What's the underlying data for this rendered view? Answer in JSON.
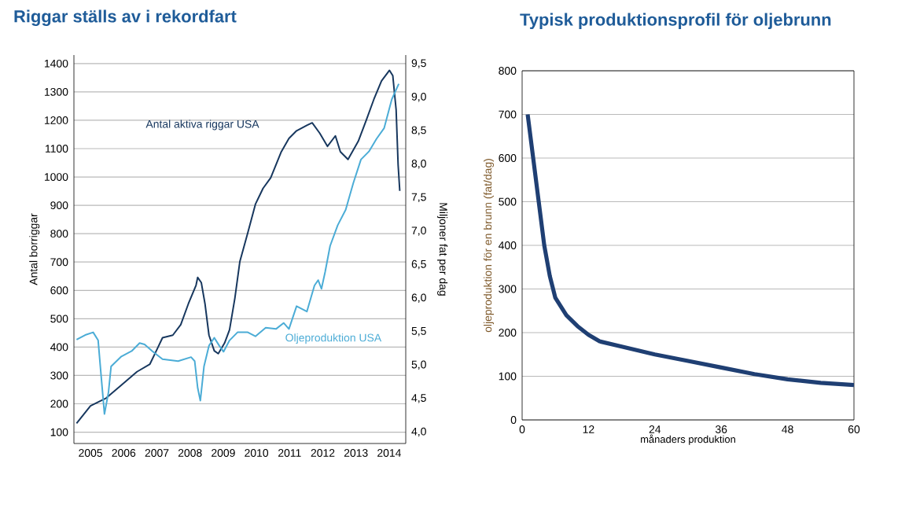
{
  "chart_data": [
    {
      "type": "line",
      "title": "Riggar ställs av i rekordfart",
      "ylabel": "Antal borriggar",
      "y2label": "Miljoner fat per dag",
      "grid": "y",
      "xlim": [
        2005,
        2015
      ],
      "xticks": [
        {
          "value": 2005.5,
          "label": "2005"
        },
        {
          "value": 2006.5,
          "label": "2006"
        },
        {
          "value": 2007.5,
          "label": "2007"
        },
        {
          "value": 2008.5,
          "label": "2008"
        },
        {
          "value": 2009.5,
          "label": "2009"
        },
        {
          "value": 2010.5,
          "label": "2010"
        },
        {
          "value": 2011.5,
          "label": "2011"
        },
        {
          "value": 2012.5,
          "label": "2012"
        },
        {
          "value": 2013.5,
          "label": "2013"
        },
        {
          "value": 2014.5,
          "label": "2014"
        }
      ],
      "ylim": [
        60,
        1430
      ],
      "yticks": [
        100,
        200,
        300,
        400,
        500,
        600,
        700,
        800,
        900,
        1000,
        1100,
        1200,
        1300,
        1400
      ],
      "y2lim": [
        3.83,
        9.63
      ],
      "y2ticks": [
        {
          "value": 4.0,
          "label": "4,0"
        },
        {
          "value": 4.5,
          "label": "4,5"
        },
        {
          "value": 5.0,
          "label": "5,0"
        },
        {
          "value": 5.5,
          "label": "5,5"
        },
        {
          "value": 6.0,
          "label": "6,0"
        },
        {
          "value": 6.5,
          "label": "6,5"
        },
        {
          "value": 7.0,
          "label": "7,0"
        },
        {
          "value": 7.5,
          "label": "7,5"
        },
        {
          "value": 8.0,
          "label": "8,0"
        },
        {
          "value": 8.5,
          "label": "8,5"
        },
        {
          "value": 9.0,
          "label": "9,0"
        },
        {
          "value": 9.5,
          "label": "9,5"
        }
      ],
      "series": [
        {
          "name": "Antal aktiva riggar USA",
          "color": "#17375e",
          "x": [
            2005.08,
            2005.5,
            2005.97,
            2006.43,
            2006.9,
            2007.29,
            2007.52,
            2007.67,
            2007.98,
            2008.22,
            2008.45,
            2008.68,
            2008.73,
            2008.84,
            2008.95,
            2009.07,
            2009.23,
            2009.35,
            2009.54,
            2009.69,
            2009.85,
            2010.0,
            2010.24,
            2010.47,
            2010.7,
            2010.93,
            2011.25,
            2011.48,
            2011.71,
            2012.02,
            2012.18,
            2012.41,
            2012.64,
            2012.88,
            2013.03,
            2013.26,
            2013.57,
            2013.81,
            2014.04,
            2014.27,
            2014.51,
            2014.61,
            2014.71,
            2014.77,
            2014.82
          ],
          "values": [
            131,
            193,
            220,
            266,
            313,
            340,
            396,
            433,
            442,
            479,
            553,
            618,
            646,
            627,
            553,
            442,
            387,
            377,
            414,
            461,
            572,
            701,
            803,
            904,
            960,
            997,
            1089,
            1136,
            1163,
            1182,
            1191,
            1154,
            1108,
            1145,
            1089,
            1062,
            1126,
            1200,
            1274,
            1339,
            1376,
            1357,
            1237,
            1043,
            951
          ]
        },
        {
          "name": "Oljeproduktion USA",
          "color": "#4bacd6",
          "axis": "y2",
          "x": [
            2005.08,
            2005.34,
            2005.58,
            2005.73,
            2005.81,
            2005.92,
            2006.04,
            2006.12,
            2006.43,
            2006.74,
            2006.98,
            2007.13,
            2007.36,
            2007.67,
            2008.14,
            2008.53,
            2008.64,
            2008.73,
            2008.81,
            2008.92,
            2009.07,
            2009.23,
            2009.38,
            2009.51,
            2009.69,
            2009.93,
            2010.24,
            2010.47,
            2010.78,
            2011.09,
            2011.32,
            2011.48,
            2011.71,
            2012.02,
            2012.25,
            2012.36,
            2012.46,
            2012.57,
            2012.72,
            2012.95,
            2013.19,
            2013.42,
            2013.65,
            2013.89,
            2014.12,
            2014.35,
            2014.58,
            2014.79
          ],
          "values": [
            5.38,
            5.45,
            5.49,
            5.37,
            4.9,
            4.27,
            4.59,
            4.98,
            5.13,
            5.21,
            5.33,
            5.31,
            5.21,
            5.09,
            5.06,
            5.12,
            5.06,
            4.66,
            4.47,
            4.98,
            5.29,
            5.41,
            5.29,
            5.2,
            5.37,
            5.49,
            5.49,
            5.43,
            5.56,
            5.54,
            5.63,
            5.54,
            5.88,
            5.8,
            6.19,
            6.27,
            6.14,
            6.39,
            6.78,
            7.09,
            7.32,
            7.72,
            8.07,
            8.19,
            8.38,
            8.54,
            8.97,
            9.2
          ]
        }
      ]
    },
    {
      "type": "line",
      "title": "Typisk produktionsprofil för oljebrunn",
      "xlabel": "månaders produktion",
      "ylabel": "oljeproduktion för en brunn (fat/dag)",
      "grid": "y",
      "xlim": [
        0,
        60
      ],
      "xticks": [
        0,
        12,
        24,
        36,
        48,
        60
      ],
      "ylim": [
        0,
        800
      ],
      "yticks": [
        0,
        100,
        200,
        300,
        400,
        500,
        600,
        700,
        800
      ],
      "series": [
        {
          "color": "#1f3f73",
          "x": [
            1,
            2,
            3,
            4,
            5,
            6,
            8,
            10,
            12,
            14,
            18,
            24,
            30,
            36,
            42,
            48,
            54,
            60
          ],
          "values": [
            700,
            600,
            500,
            400,
            330,
            280,
            240,
            215,
            195,
            180,
            168,
            150,
            135,
            120,
            105,
            93,
            85,
            80
          ]
        }
      ]
    }
  ]
}
